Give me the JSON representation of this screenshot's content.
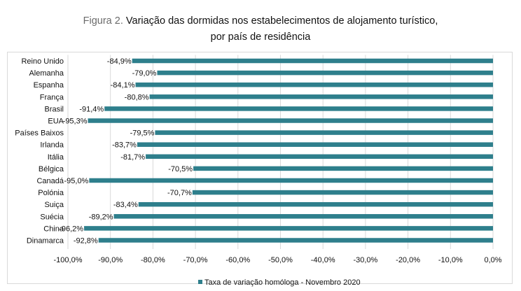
{
  "title": {
    "prefix": "Figura 2.",
    "line1": "Variação das dormidas nos estabelecimentos de alojamento turístico,",
    "line2": "por país de residência"
  },
  "chart_data": {
    "type": "bar",
    "orientation": "horizontal",
    "categories": [
      "Reino Unido",
      "Alemanha",
      "Espanha",
      "França",
      "Brasil",
      "EUA",
      "Países Baixos",
      "Irlanda",
      "Itália",
      "Bélgica",
      "Canadá",
      "Polónia",
      "Suiça",
      "Suécia",
      "China",
      "Dinamarca"
    ],
    "series": [
      {
        "name": "Taxa de variação homóloga - Novembro  2020",
        "values": [
          -84.9,
          -79.0,
          -84.1,
          -80.8,
          -91.4,
          -95.3,
          -79.5,
          -83.7,
          -81.7,
          -70.5,
          -95.0,
          -70.7,
          -83.4,
          -89.2,
          -96.2,
          -92.8
        ],
        "labels": [
          "-84,9%",
          "-79,0%",
          "-84,1%",
          "-80,8%",
          "-91,4%",
          "-95,3%",
          "-79,5%",
          "-83,7%",
          "-81,7%",
          "-70,5%",
          "-95,0%",
          "-70,7%",
          "-83,4%",
          "-89,2%",
          "-96,2%",
          "-92,8%"
        ]
      }
    ],
    "xlim": [
      -100,
      0
    ],
    "xticks": [
      -100,
      -90,
      -80,
      -70,
      -60,
      -50,
      -40,
      -30,
      -20,
      -10,
      0
    ],
    "xtick_labels": [
      "-100,0%",
      "-90,0%",
      "-80,0%",
      "-70,0%",
      "-60,0%",
      "-50,0%",
      "-40,0%",
      "-30,0%",
      "-20,0%",
      "-10,0%",
      "0,0%"
    ],
    "legend_position": "bottom",
    "grid": true,
    "colors": {
      "bar": "#2e7f8c",
      "grid": "#d9d9d9"
    }
  }
}
